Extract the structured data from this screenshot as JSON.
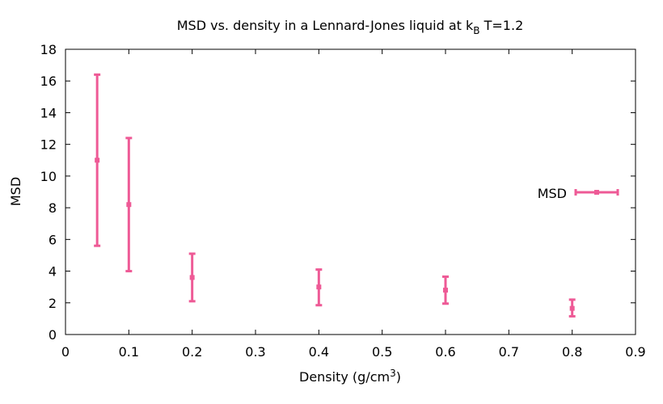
{
  "chart_data": {
    "type": "scatter",
    "title_main": "MSD vs. density in a Lennard-Jones liquid at k",
    "title_sub": "B",
    "title_tail": " T=1.2",
    "xlabel_main": "Density (g/cm",
    "xlabel_sup": "3",
    "xlabel_tail": ")",
    "ylabel": "MSD",
    "xlim": [
      0,
      0.9
    ],
    "ylim": [
      0,
      18
    ],
    "xticks": [
      0,
      0.1,
      0.2,
      0.3,
      0.4,
      0.5,
      0.6,
      0.7,
      0.8,
      0.9
    ],
    "xtick_labels": [
      "0",
      "0.1",
      "0.2",
      "0.3",
      "0.4",
      "0.5",
      "0.6",
      "0.7",
      "0.8",
      "0.9"
    ],
    "yticks": [
      0,
      2,
      4,
      6,
      8,
      10,
      12,
      14,
      16,
      18
    ],
    "ytick_labels": [
      "0",
      "2",
      "4",
      "6",
      "8",
      "10",
      "12",
      "14",
      "16",
      "18"
    ],
    "legend_position": "right",
    "series": [
      {
        "name": "MSD",
        "color": "#ee5a96",
        "points": [
          {
            "x": 0.05,
            "y": 11.0,
            "ylow": 5.6,
            "yhigh": 16.4
          },
          {
            "x": 0.1,
            "y": 8.2,
            "ylow": 4.0,
            "yhigh": 12.4
          },
          {
            "x": 0.2,
            "y": 3.6,
            "ylow": 2.1,
            "yhigh": 5.1
          },
          {
            "x": 0.4,
            "y": 3.0,
            "ylow": 1.85,
            "yhigh": 4.1
          },
          {
            "x": 0.6,
            "y": 2.8,
            "ylow": 1.95,
            "yhigh": 3.65
          },
          {
            "x": 0.8,
            "y": 1.65,
            "ylow": 1.15,
            "yhigh": 2.2
          }
        ]
      }
    ]
  }
}
